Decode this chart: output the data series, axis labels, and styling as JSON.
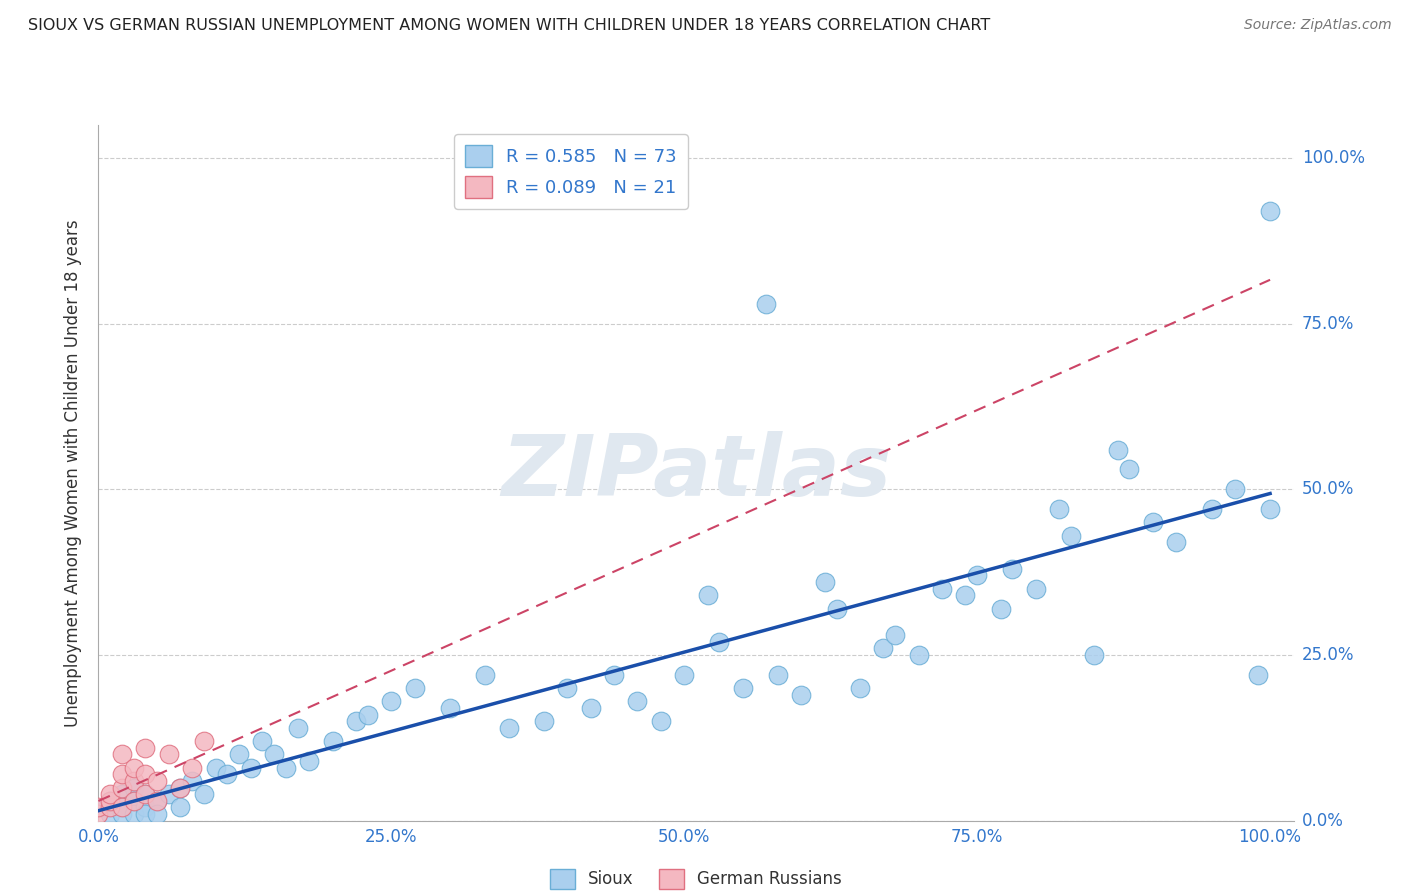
{
  "title": "SIOUX VS GERMAN RUSSIAN UNEMPLOYMENT AMONG WOMEN WITH CHILDREN UNDER 18 YEARS CORRELATION CHART",
  "source": "Source: ZipAtlas.com",
  "ylabel_label": "Unemployment Among Women with Children Under 18 years",
  "x_tick_labels": [
    "0.0%",
    "25.0%",
    "50.0%",
    "75.0%",
    "100.0%"
  ],
  "x_tick_values": [
    0.0,
    0.25,
    0.5,
    0.75,
    1.0
  ],
  "y_tick_labels": [
    "0.0%",
    "25.0%",
    "50.0%",
    "75.0%",
    "100.0%"
  ],
  "y_tick_values": [
    0.0,
    0.25,
    0.5,
    0.75,
    1.0
  ],
  "sioux_R": 0.585,
  "sioux_N": 73,
  "german_russian_R": 0.089,
  "german_russian_N": 21,
  "sioux_color": "#aacfee",
  "sioux_edge_color": "#6aaed6",
  "german_russian_color": "#f4b8c1",
  "german_russian_edge_color": "#e07080",
  "regression_sioux_color": "#1a4faa",
  "regression_german_color": "#cc4466",
  "watermark_color": "#e0e8f0",
  "sioux_x": [
    0.005,
    0.01,
    0.01,
    0.02,
    0.02,
    0.02,
    0.03,
    0.03,
    0.03,
    0.04,
    0.04,
    0.04,
    0.05,
    0.05,
    0.06,
    0.07,
    0.07,
    0.08,
    0.09,
    0.1,
    0.11,
    0.12,
    0.13,
    0.14,
    0.15,
    0.16,
    0.17,
    0.18,
    0.2,
    0.22,
    0.23,
    0.25,
    0.27,
    0.3,
    0.33,
    0.35,
    0.38,
    0.4,
    0.42,
    0.44,
    0.46,
    0.48,
    0.5,
    0.52,
    0.53,
    0.55,
    0.57,
    0.58,
    0.6,
    0.62,
    0.63,
    0.65,
    0.67,
    0.68,
    0.7,
    0.72,
    0.74,
    0.75,
    0.77,
    0.78,
    0.8,
    0.82,
    0.83,
    0.85,
    0.87,
    0.88,
    0.9,
    0.92,
    0.95,
    0.97,
    0.99,
    1.0,
    1.0
  ],
  "sioux_y": [
    0.02,
    0.03,
    0.01,
    0.04,
    0.02,
    0.01,
    0.05,
    0.03,
    0.01,
    0.04,
    0.02,
    0.01,
    0.03,
    0.01,
    0.04,
    0.05,
    0.02,
    0.06,
    0.04,
    0.08,
    0.07,
    0.1,
    0.08,
    0.12,
    0.1,
    0.08,
    0.14,
    0.09,
    0.12,
    0.15,
    0.16,
    0.18,
    0.2,
    0.17,
    0.22,
    0.14,
    0.15,
    0.2,
    0.17,
    0.22,
    0.18,
    0.15,
    0.22,
    0.34,
    0.27,
    0.2,
    0.78,
    0.22,
    0.19,
    0.36,
    0.32,
    0.2,
    0.26,
    0.28,
    0.25,
    0.35,
    0.34,
    0.37,
    0.32,
    0.38,
    0.35,
    0.47,
    0.43,
    0.25,
    0.56,
    0.53,
    0.45,
    0.42,
    0.47,
    0.5,
    0.22,
    0.47,
    0.92
  ],
  "german_russian_x": [
    0.0,
    0.0,
    0.01,
    0.01,
    0.01,
    0.02,
    0.02,
    0.02,
    0.02,
    0.03,
    0.03,
    0.03,
    0.04,
    0.04,
    0.04,
    0.05,
    0.05,
    0.06,
    0.07,
    0.08,
    0.09
  ],
  "german_russian_y": [
    0.01,
    0.02,
    0.02,
    0.03,
    0.04,
    0.02,
    0.05,
    0.07,
    0.1,
    0.03,
    0.06,
    0.08,
    0.04,
    0.07,
    0.11,
    0.03,
    0.06,
    0.1,
    0.05,
    0.08,
    0.12
  ]
}
